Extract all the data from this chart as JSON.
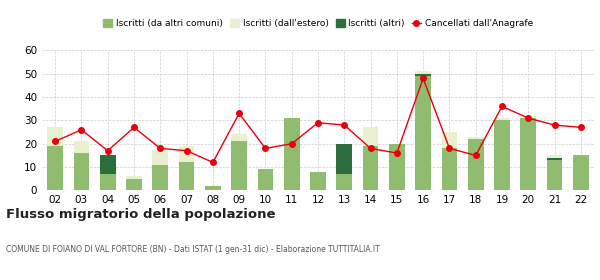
{
  "years": [
    "02",
    "03",
    "04",
    "05",
    "06",
    "07",
    "08",
    "09",
    "10",
    "11",
    "12",
    "13",
    "14",
    "15",
    "16",
    "17",
    "18",
    "19",
    "20",
    "21",
    "22"
  ],
  "iscritti_altri_comuni": [
    19,
    16,
    7,
    5,
    11,
    12,
    2,
    21,
    9,
    31,
    8,
    7,
    19,
    20,
    49,
    18,
    22,
    30,
    31,
    13,
    15
  ],
  "iscritti_estero": [
    8,
    5,
    4,
    1,
    6,
    7,
    0,
    3,
    0,
    0,
    0,
    0,
    8,
    0,
    2,
    7,
    1,
    1,
    1,
    2,
    0
  ],
  "iscritti_altri": [
    0,
    0,
    8,
    0,
    0,
    0,
    0,
    0,
    0,
    0,
    0,
    13,
    0,
    0,
    1,
    0,
    0,
    0,
    0,
    1,
    0
  ],
  "cancellati": [
    21,
    26,
    17,
    27,
    18,
    17,
    12,
    33,
    18,
    20,
    29,
    28,
    18,
    16,
    48,
    18,
    15,
    36,
    31,
    28,
    27
  ],
  "color_altri_comuni": "#8fbc6e",
  "color_estero": "#e8f0d0",
  "color_altri": "#2d6e3e",
  "color_cancellati": "#e8000d",
  "background_color": "#ffffff",
  "grid_color": "#cccccc",
  "ylim": [
    0,
    60
  ],
  "yticks": [
    0,
    10,
    20,
    30,
    40,
    50,
    60
  ],
  "title": "Flusso migratorio della popolazione",
  "subtitle": "COMUNE DI FOIANO DI VAL FORTORE (BN) - Dati ISTAT (1 gen-31 dic) - Elaborazione TUTTITALIA.IT",
  "legend_labels": [
    "Iscritti (da altri comuni)",
    "Iscritti (dall'estero)",
    "Iscritti (altri)",
    "Cancellati dall'Anagrafe"
  ]
}
